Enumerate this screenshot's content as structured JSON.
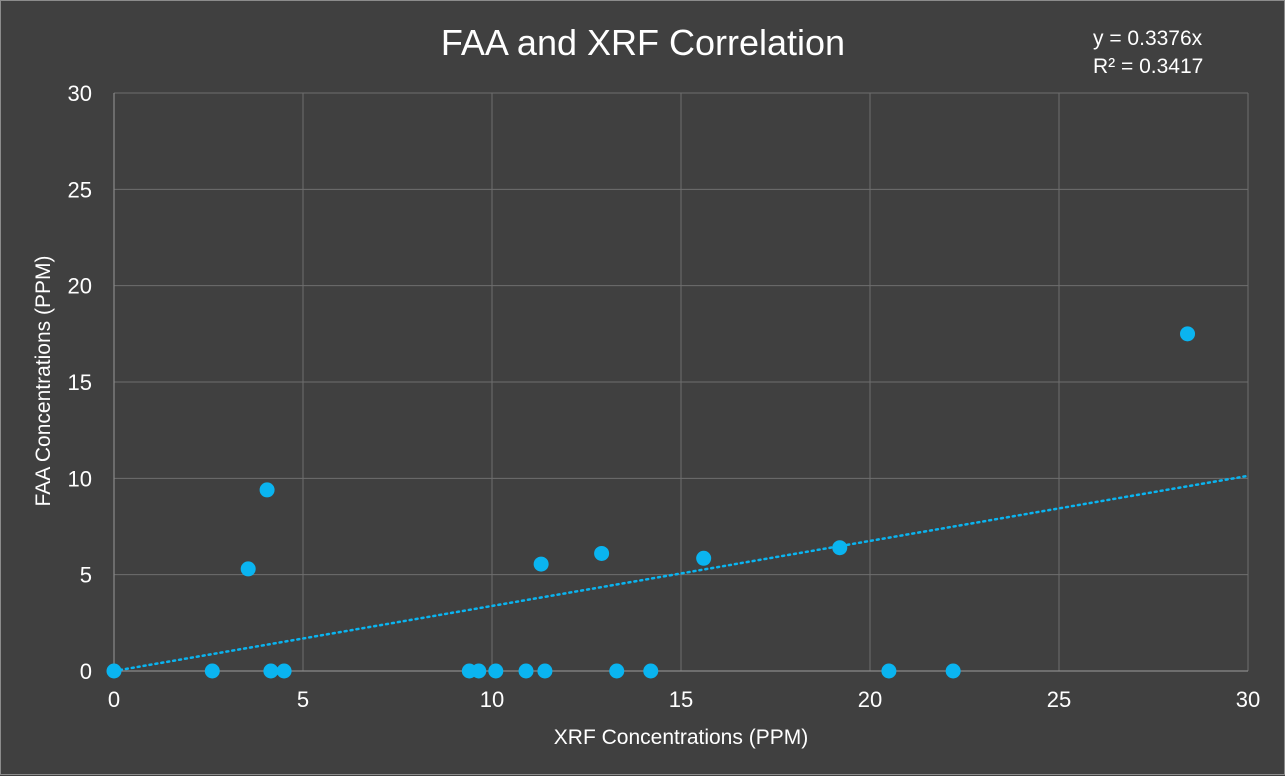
{
  "chart_data": {
    "type": "scatter",
    "title": "FAA and XRF Correlation",
    "xlabel": "XRF Concentrations (PPM)",
    "ylabel": "FAA Concentrations (PPM)",
    "xlim": [
      0,
      30
    ],
    "ylim": [
      0,
      30
    ],
    "x_ticks": [
      0,
      5,
      10,
      15,
      20,
      25,
      30
    ],
    "y_ticks": [
      0,
      5,
      10,
      15,
      20,
      25,
      30
    ],
    "grid": true,
    "series": [
      {
        "color": "#0ab4f0",
        "points": [
          {
            "x": 0,
            "y": 0
          },
          {
            "x": 2.6,
            "y": 0
          },
          {
            "x": 3.55,
            "y": 5.3
          },
          {
            "x": 4.05,
            "y": 9.4
          },
          {
            "x": 4.15,
            "y": 0
          },
          {
            "x": 4.5,
            "y": 0
          },
          {
            "x": 9.4,
            "y": 0
          },
          {
            "x": 9.65,
            "y": 0
          },
          {
            "x": 10.1,
            "y": 0
          },
          {
            "x": 10.9,
            "y": 0
          },
          {
            "x": 11.3,
            "y": 5.55
          },
          {
            "x": 11.4,
            "y": 0
          },
          {
            "x": 12.9,
            "y": 6.1
          },
          {
            "x": 13.3,
            "y": 0
          },
          {
            "x": 14.2,
            "y": 0
          },
          {
            "x": 15.6,
            "y": 5.85
          },
          {
            "x": 19.2,
            "y": 6.4
          },
          {
            "x": 20.5,
            "y": 0
          },
          {
            "x": 22.2,
            "y": 0
          },
          {
            "x": 28.4,
            "y": 17.5
          }
        ]
      }
    ],
    "trendline": {
      "type": "linear",
      "slope": 0.3376,
      "intercept": 0,
      "style": "dotted",
      "color": "#0ab4f0",
      "equation": "y = 0.3376x",
      "r_squared": "R² = 0.3417"
    }
  }
}
